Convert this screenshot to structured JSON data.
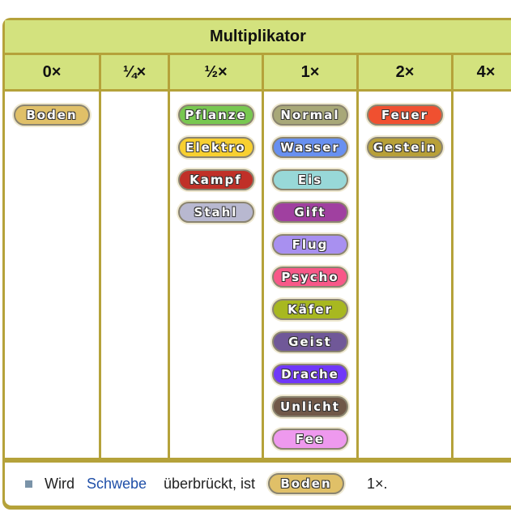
{
  "table": {
    "title": "Multiplikator",
    "columns": [
      "0×",
      "¼×",
      "½×",
      "1×",
      "2×",
      "4×"
    ],
    "cells": [
      [
        {
          "label": "Boden",
          "color": "#e0c068"
        }
      ],
      [],
      [
        {
          "label": "Pflanze",
          "color": "#78c850"
        },
        {
          "label": "Elektro",
          "color": "#f8d030"
        },
        {
          "label": "Kampf",
          "color": "#c03028"
        },
        {
          "label": "Stahl",
          "color": "#b8b8d0"
        }
      ],
      [
        {
          "label": "Normal",
          "color": "#a8a878"
        },
        {
          "label": "Wasser",
          "color": "#6890f0"
        },
        {
          "label": "Eis",
          "color": "#98d8d8"
        },
        {
          "label": "Gift",
          "color": "#a040a0"
        },
        {
          "label": "Flug",
          "color": "#a890f0"
        },
        {
          "label": "Psycho",
          "color": "#f85888"
        },
        {
          "label": "Käfer",
          "color": "#a8b820"
        },
        {
          "label": "Geist",
          "color": "#705898"
        },
        {
          "label": "Drache",
          "color": "#7038f8"
        },
        {
          "label": "Unlicht",
          "color": "#705848"
        },
        {
          "label": "Fee",
          "color": "#ee99ee"
        }
      ],
      [
        {
          "label": "Feuer",
          "color": "#f05030"
        },
        {
          "label": "Gestein",
          "color": "#b8a038"
        }
      ],
      []
    ]
  },
  "footnote": {
    "text1": "Wird",
    "link": "Schwebe",
    "text2": "überbrückt, ist",
    "badge": {
      "label": "Boden",
      "color": "#e0c068"
    },
    "text3": "1×."
  }
}
